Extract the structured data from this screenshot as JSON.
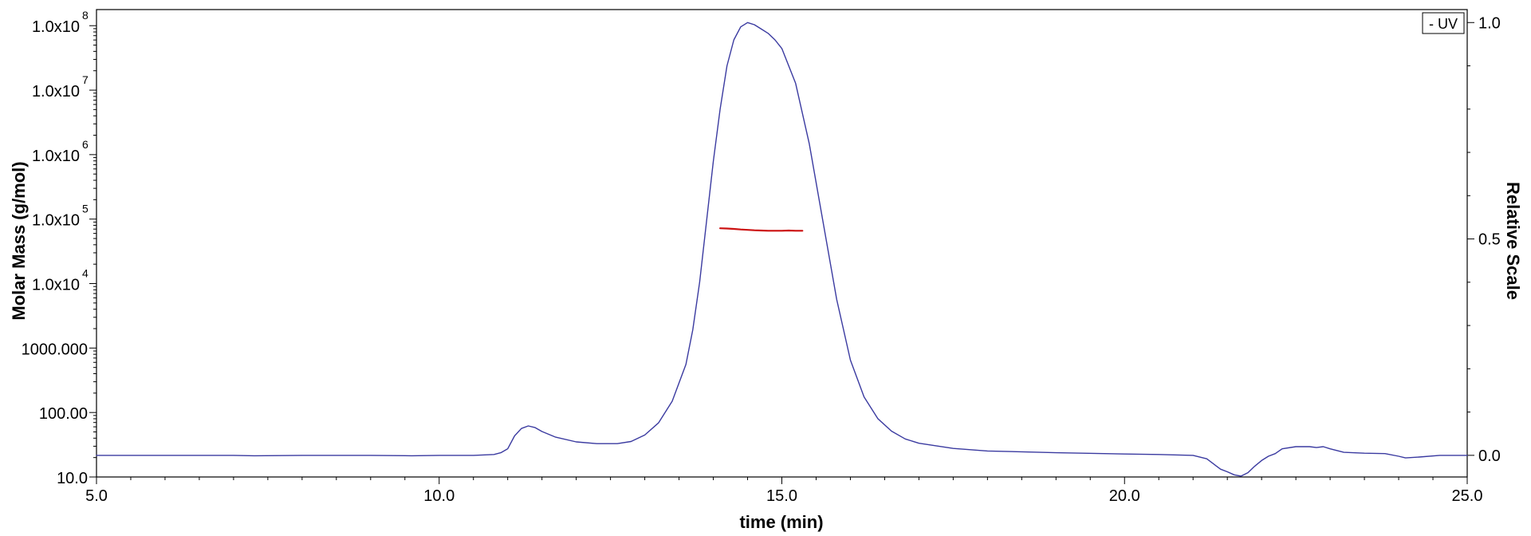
{
  "chart_data": {
    "type": "line",
    "xlabel": "time (min)",
    "ylabel_left": "Molar Mass (g/mol)",
    "ylabel_right": "Relative Scale",
    "xlim": [
      5.0,
      25.0
    ],
    "ylim_left_log10": [
      1,
      8.25
    ],
    "ylim_right": [
      -0.05,
      1.03
    ],
    "left_scale": "log",
    "grid": false,
    "legend_position": "top-right",
    "x_ticks": [
      {
        "value": 5.0,
        "label": "5.0"
      },
      {
        "value": 10.0,
        "label": "10.0"
      },
      {
        "value": 15.0,
        "label": "15.0"
      },
      {
        "value": 20.0,
        "label": "20.0"
      },
      {
        "value": 25.0,
        "label": "25.0"
      }
    ],
    "y_left_ticks": [
      {
        "log": 8,
        "mantissa": "1.0x10",
        "exponent": "8"
      },
      {
        "log": 7,
        "mantissa": "1.0x10",
        "exponent": "7"
      },
      {
        "log": 6,
        "mantissa": "1.0x10",
        "exponent": "6"
      },
      {
        "log": 5,
        "mantissa": "1.0x10",
        "exponent": "5"
      },
      {
        "log": 4,
        "mantissa": "1.0x10",
        "exponent": "4"
      },
      {
        "log": 3,
        "mantissa": "1000.000",
        "exponent": ""
      },
      {
        "log": 2,
        "mantissa": "100.00",
        "exponent": ""
      },
      {
        "log": 1,
        "mantissa": "10.0",
        "exponent": ""
      }
    ],
    "y_right_ticks": [
      {
        "value": 0.0,
        "label": "0.0"
      },
      {
        "value": 0.5,
        "label": "0.5"
      },
      {
        "value": 1.0,
        "label": "1.0"
      }
    ],
    "series": [
      {
        "name": "UV",
        "color": "#3a3aa0",
        "axis": "right",
        "x": [
          5.0,
          6.0,
          7.0,
          7.3,
          8.0,
          9.0,
          9.6,
          10.0,
          10.5,
          10.8,
          10.9,
          11.0,
          11.1,
          11.2,
          11.3,
          11.4,
          11.5,
          11.7,
          12.0,
          12.3,
          12.6,
          12.8,
          13.0,
          13.2,
          13.4,
          13.6,
          13.7,
          13.8,
          13.9,
          14.0,
          14.1,
          14.2,
          14.3,
          14.4,
          14.5,
          14.6,
          14.7,
          14.8,
          14.9,
          15.0,
          15.2,
          15.4,
          15.6,
          15.8,
          16.0,
          16.2,
          16.4,
          16.6,
          16.8,
          17.0,
          17.5,
          18.0,
          19.0,
          20.0,
          20.5,
          21.0,
          21.2,
          21.3,
          21.4,
          21.5,
          21.6,
          21.7,
          21.8,
          21.9,
          22.0,
          22.1,
          22.2,
          22.3,
          22.5,
          22.7,
          22.8,
          22.9,
          23.0,
          23.2,
          23.5,
          23.8,
          24.0,
          24.1,
          24.3,
          24.6,
          25.0
        ],
        "y": [
          0.0,
          0.0,
          0.0,
          -0.001,
          0.0,
          0.0,
          -0.001,
          0.0,
          0.0,
          0.002,
          0.006,
          0.015,
          0.045,
          0.062,
          0.068,
          0.064,
          0.055,
          0.042,
          0.031,
          0.027,
          0.027,
          0.032,
          0.047,
          0.075,
          0.125,
          0.21,
          0.29,
          0.4,
          0.54,
          0.68,
          0.8,
          0.9,
          0.96,
          0.99,
          1.0,
          0.995,
          0.985,
          0.975,
          0.96,
          0.94,
          0.86,
          0.72,
          0.54,
          0.36,
          0.22,
          0.135,
          0.085,
          0.056,
          0.038,
          0.028,
          0.016,
          0.01,
          0.006,
          0.003,
          0.002,
          0.0,
          -0.008,
          -0.02,
          -0.032,
          -0.038,
          -0.045,
          -0.048,
          -0.04,
          -0.025,
          -0.012,
          -0.002,
          0.004,
          0.015,
          0.02,
          0.02,
          0.018,
          0.02,
          0.015,
          0.007,
          0.005,
          0.004,
          -0.002,
          -0.006,
          -0.004,
          0.0,
          0.0
        ]
      },
      {
        "name": "Molar Mass",
        "color": "#cc1111",
        "axis": "left",
        "x": [
          14.1,
          14.2,
          14.3,
          14.4,
          14.5,
          14.6,
          14.7,
          14.8,
          14.9,
          15.0,
          15.1,
          15.2,
          15.3
        ],
        "y": [
          72000,
          71500,
          70500,
          69000,
          68000,
          67000,
          66500,
          66000,
          66000,
          66000,
          66500,
          66000,
          66000
        ]
      }
    ]
  },
  "legend": {
    "label": "- UV"
  }
}
